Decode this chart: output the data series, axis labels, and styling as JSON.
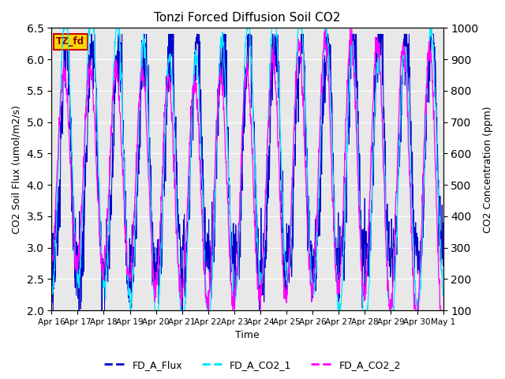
{
  "title": "Tonzi Forced Diffusion Soil CO2",
  "xlabel": "Time",
  "ylabel_left": "CO2 Soil Flux (umol/m2/s)",
  "ylabel_right": "CO2 Concentration (ppm)",
  "ylim_left": [
    2.0,
    6.5
  ],
  "ylim_right": [
    100,
    1000
  ],
  "color_flux": "#0000CC",
  "color_co2_1": "#00E5FF",
  "color_co2_2": "#FF00FF",
  "legend_labels": [
    "FD_A_Flux",
    "FD_A_CO2_1",
    "FD_A_CO2_2"
  ],
  "tag_text": "TZ_fd",
  "tag_bg": "#FFD700",
  "tag_edge": "#CC0000",
  "background_color": "#E8E8E8",
  "n_days": 15,
  "pts_per_day": 96,
  "xtick_labels": [
    "Apr 16",
    "Apr 17",
    "Apr 18",
    "Apr 19",
    "Apr 20",
    "Apr 21",
    "Apr 22",
    "Apr 23",
    "Apr 24",
    "Apr 25",
    "Apr 26",
    "Apr 27",
    "Apr 28",
    "Apr 29",
    "Apr 30",
    "May 1"
  ],
  "figsize": [
    6.4,
    4.8
  ],
  "dpi": 100
}
